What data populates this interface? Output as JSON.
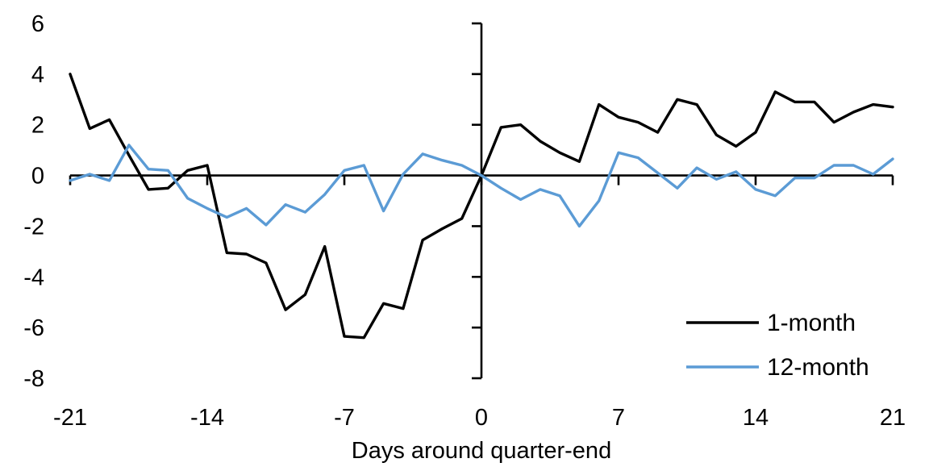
{
  "chart_data": {
    "type": "line",
    "xlabel": "Days around quarter-end",
    "ylabel": "",
    "xlim": [
      -21,
      21
    ],
    "ylim": [
      -8,
      6
    ],
    "x_ticks": [
      -21,
      -14,
      -7,
      0,
      7,
      14,
      21
    ],
    "y_ticks": [
      6,
      4,
      2,
      0,
      -2,
      -4,
      -6,
      -8
    ],
    "grid": false,
    "legend_position": "lower-right",
    "axis_color": "#000000",
    "x": [
      -21,
      -20,
      -19,
      -18,
      -17,
      -16,
      -15,
      -14,
      -13,
      -12,
      -11,
      -10,
      -9,
      -8,
      -7,
      -6,
      -5,
      -4,
      -3,
      -2,
      -1,
      0,
      1,
      2,
      3,
      4,
      5,
      6,
      7,
      8,
      9,
      10,
      11,
      12,
      13,
      14,
      15,
      16,
      17,
      18,
      19,
      20,
      21
    ],
    "series": [
      {
        "name": "1-month",
        "color": "#000000",
        "values": [
          4.0,
          1.85,
          2.2,
          0.8,
          -0.55,
          -0.5,
          0.2,
          0.4,
          -3.05,
          -3.1,
          -3.45,
          -5.3,
          -4.7,
          -2.8,
          -6.35,
          -6.4,
          -5.05,
          -5.25,
          -2.55,
          -2.1,
          -1.7,
          0.0,
          1.9,
          2.0,
          1.35,
          0.9,
          0.55,
          2.8,
          2.3,
          2.1,
          1.7,
          3.0,
          2.8,
          1.6,
          1.15,
          1.7,
          3.3,
          2.9,
          2.9,
          2.1,
          2.5,
          2.8,
          2.7
        ]
      },
      {
        "name": "12-month",
        "color": "#5B9BD5",
        "values": [
          -0.2,
          0.05,
          -0.2,
          1.2,
          0.25,
          0.2,
          -0.9,
          -1.3,
          -1.65,
          -1.3,
          -1.95,
          -1.15,
          -1.45,
          -0.75,
          0.2,
          0.4,
          -1.4,
          0.05,
          0.85,
          0.6,
          0.4,
          0.0,
          -0.5,
          -0.95,
          -0.55,
          -0.8,
          -2.0,
          -1.0,
          0.9,
          0.7,
          0.1,
          -0.5,
          0.3,
          -0.15,
          0.15,
          -0.55,
          -0.8,
          -0.1,
          -0.1,
          0.4,
          0.4,
          0.05,
          0.65
        ]
      }
    ]
  }
}
